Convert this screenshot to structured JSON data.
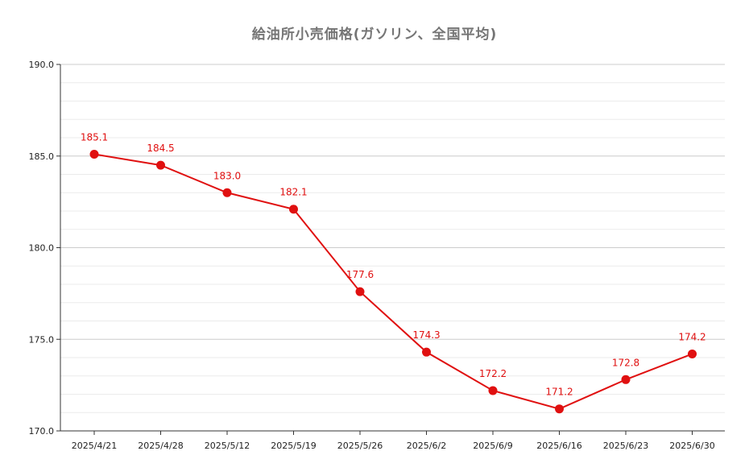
{
  "chart_data": {
    "type": "line",
    "title": "給油所小売価格(ガソリン、全国平均)",
    "xlabel": "",
    "ylabel": "",
    "categories": [
      "2025/4/21",
      "2025/4/28",
      "2025/5/12",
      "2025/5/19",
      "2025/5/26",
      "2025/6/2",
      "2025/6/9",
      "2025/6/16",
      "2025/6/23",
      "2025/6/30"
    ],
    "series": [
      {
        "values": [
          185.1,
          184.5,
          183.0,
          182.1,
          177.6,
          174.3,
          172.2,
          171.2,
          172.8,
          174.2
        ],
        "labels": [
          "185.1",
          "184.5",
          "183.0",
          "182.1",
          "177.6",
          "174.3",
          "172.2",
          "171.2",
          "172.8",
          "174.2"
        ],
        "color": "#e01010"
      }
    ],
    "ylim": [
      170,
      190
    ],
    "yticks": [
      170,
      175,
      180,
      185,
      190
    ],
    "ytick_labels": [
      "170.0",
      "175.0",
      "180.0",
      "185.0",
      "190.0"
    ],
    "minor_grid_step": 1,
    "grid": true,
    "legend": "none",
    "colors": {
      "line": "#e01010",
      "major_grid": "#cccccc",
      "minor_grid": "#ebebeb",
      "axis": "#333333",
      "title": "#757575"
    }
  }
}
